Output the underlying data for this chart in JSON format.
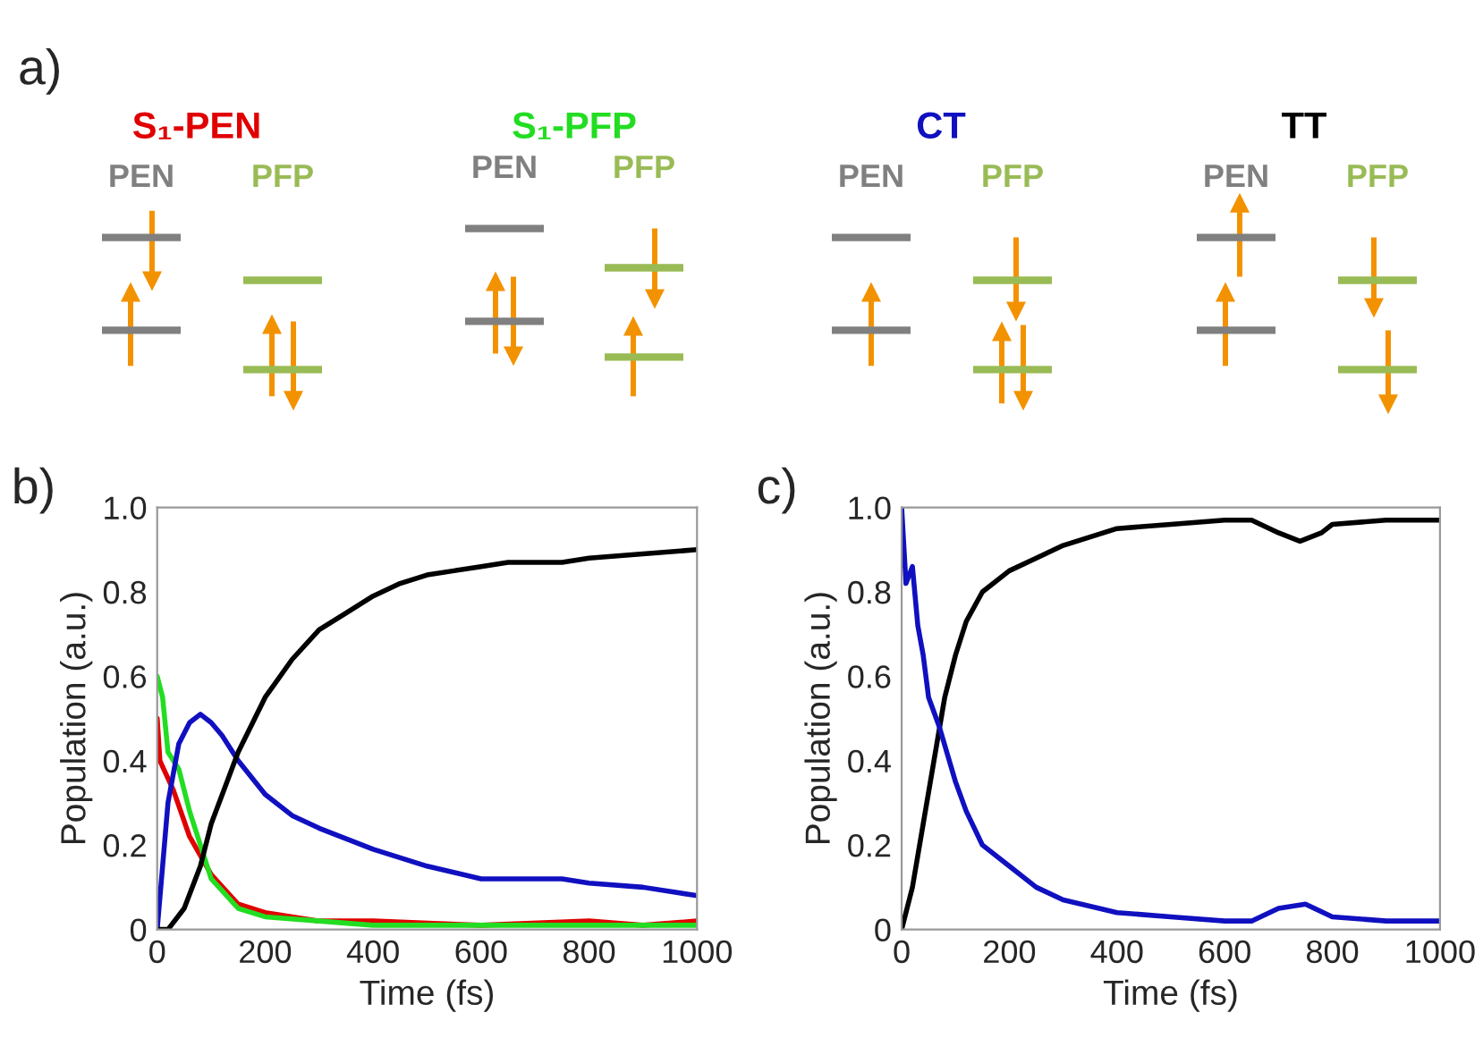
{
  "chart_data": [
    {
      "type": "other",
      "annotations": [
        "a)",
        "S₁-PEN",
        "S₁-PFP",
        "CT",
        "TT",
        "PEN",
        "PFP",
        "PEN",
        "PFP",
        "PEN",
        "PFP",
        "PEN",
        "PFP"
      ]
    },
    {
      "type": "line",
      "xlabel": "Time (fs)",
      "ylabel": "Population (a.u.)",
      "annotations": [
        "b)"
      ],
      "xlim": [
        0,
        1000
      ],
      "ylim": [
        0,
        1
      ],
      "xticks": [
        0,
        200,
        400,
        600,
        800,
        1000
      ],
      "yticks": [
        0,
        0.2,
        0.4,
        0.6,
        0.8,
        {
          "value": 1,
          "label": "1.0"
        }
      ],
      "grid": false,
      "legend": false,
      "marker": "none",
      "line_style": "solid",
      "series": [
        {
          "color": "#e00000",
          "x": [
            0,
            5,
            30,
            60,
            100,
            150,
            200,
            250,
            300,
            400,
            600,
            800,
            900,
            1000
          ],
          "values": [
            0.5,
            0.4,
            0.33,
            0.22,
            0.13,
            0.06,
            0.04,
            0.03,
            0.02,
            0.02,
            0.01,
            0.02,
            0.01,
            0.02
          ]
        },
        {
          "color": "#22dd22",
          "x": [
            0,
            10,
            20,
            40,
            60,
            100,
            150,
            200,
            300,
            400,
            600,
            800,
            1000
          ],
          "values": [
            0.6,
            0.55,
            0.42,
            0.38,
            0.28,
            0.12,
            0.05,
            0.03,
            0.02,
            0.01,
            0.01,
            0.01,
            0.01
          ]
        },
        {
          "color": "#1010c0",
          "x": [
            0,
            20,
            40,
            60,
            80,
            100,
            120,
            150,
            200,
            250,
            300,
            400,
            500,
            600,
            700,
            750,
            800,
            900,
            1000
          ],
          "values": [
            0,
            0.3,
            0.44,
            0.49,
            0.51,
            0.49,
            0.46,
            0.4,
            0.32,
            0.27,
            0.24,
            0.19,
            0.15,
            0.12,
            0.12,
            0.12,
            0.11,
            0.1,
            0.08
          ]
        },
        {
          "color": "#000000",
          "x": [
            0,
            20,
            50,
            80,
            100,
            150,
            200,
            250,
            300,
            350,
            400,
            450,
            500,
            550,
            600,
            650,
            700,
            750,
            800,
            900,
            1000
          ],
          "values": [
            0,
            0,
            0.05,
            0.15,
            0.25,
            0.42,
            0.55,
            0.64,
            0.71,
            0.75,
            0.79,
            0.82,
            0.84,
            0.85,
            0.86,
            0.87,
            0.87,
            0.87,
            0.88,
            0.89,
            0.9
          ]
        }
      ]
    },
    {
      "type": "line",
      "xlabel": "Time (fs)",
      "ylabel": "Population (a.u.)",
      "annotations": [
        "c)"
      ],
      "xlim": [
        0,
        1000
      ],
      "ylim": [
        0,
        1
      ],
      "xticks": [
        0,
        200,
        400,
        600,
        800,
        1000
      ],
      "yticks": [
        0,
        0.2,
        0.4,
        0.6,
        0.8,
        {
          "value": 1,
          "label": "1.0"
        }
      ],
      "grid": false,
      "legend": false,
      "marker": "none",
      "line_style": "solid",
      "series": [
        {
          "color": "#000000",
          "x": [
            0,
            20,
            40,
            60,
            80,
            100,
            120,
            150,
            200,
            250,
            300,
            350,
            400,
            500,
            600,
            650,
            700,
            740,
            780,
            800,
            900,
            1000
          ],
          "values": [
            0,
            0.1,
            0.25,
            0.4,
            0.55,
            0.65,
            0.73,
            0.8,
            0.85,
            0.88,
            0.91,
            0.93,
            0.95,
            0.96,
            0.97,
            0.97,
            0.94,
            0.92,
            0.94,
            0.96,
            0.97,
            0.97
          ]
        },
        {
          "color": "#1010c0",
          "x": [
            0,
            8,
            20,
            30,
            40,
            50,
            70,
            100,
            120,
            150,
            200,
            250,
            300,
            400,
            500,
            600,
            650,
            700,
            750,
            800,
            900,
            1000
          ],
          "values": [
            1,
            0.82,
            0.86,
            0.72,
            0.65,
            0.55,
            0.48,
            0.35,
            0.28,
            0.2,
            0.15,
            0.1,
            0.07,
            0.04,
            0.03,
            0.02,
            0.02,
            0.05,
            0.06,
            0.03,
            0.02,
            0.02
          ]
        }
      ]
    }
  ]
}
